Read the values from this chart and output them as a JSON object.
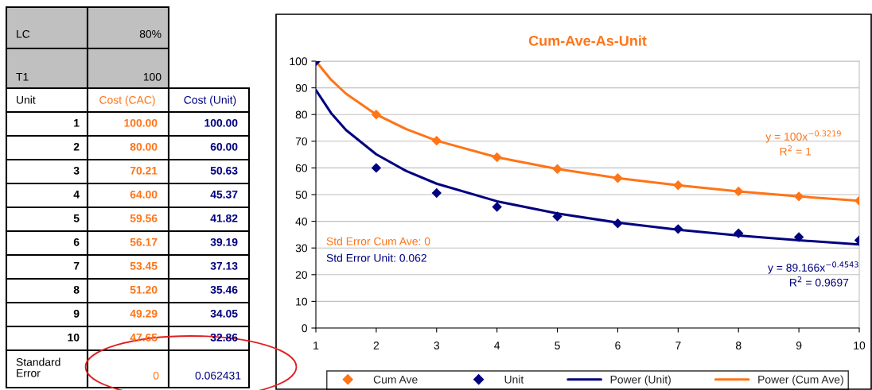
{
  "chart_data": {
    "type": "scatter",
    "title": "Cum-Ave-As-Unit",
    "x": [
      1,
      2,
      3,
      4,
      5,
      6,
      7,
      8,
      9,
      10
    ],
    "xlim": [
      1,
      10
    ],
    "xticks": [
      1,
      2,
      3,
      4,
      5,
      6,
      7,
      8,
      9,
      10
    ],
    "ylim": [
      0,
      100
    ],
    "yticks": [
      0,
      10,
      20,
      30,
      40,
      50,
      60,
      70,
      80,
      90,
      100
    ],
    "grid": "y",
    "legend": "bottom",
    "marker": "diamond",
    "series": [
      {
        "name": "Cum Ave",
        "color": "#ff7417",
        "values": [
          null,
          80,
          70.2,
          64,
          59.6,
          56.2,
          53.5,
          51.2,
          49.3,
          47.7
        ]
      },
      {
        "name": "Unit",
        "color": "#000080",
        "values": [
          100,
          60,
          50.6,
          45.4,
          41.8,
          39.2,
          37.1,
          35.5,
          34.1,
          32.9
        ]
      },
      {
        "name": "Power (Unit)",
        "type": "line",
        "marker": "none",
        "color": "#000080",
        "x": [
          1,
          1.25,
          1.5,
          2,
          2.5,
          3,
          4,
          5,
          6,
          7,
          8,
          9,
          10
        ],
        "values": [
          89.2,
          80.6,
          74.2,
          65.1,
          58.8,
          54.1,
          47.5,
          42.9,
          39.5,
          36.8,
          34.7,
          32.9,
          31.3
        ]
      },
      {
        "name": "Power (Cum Ave)",
        "type": "line",
        "marker": "none",
        "color": "#ff7417",
        "x": [
          1,
          1.25,
          1.5,
          2,
          2.5,
          3,
          4,
          5,
          6,
          7,
          8,
          9,
          10
        ],
        "values": [
          100,
          93.1,
          87.8,
          80,
          74.5,
          70.2,
          64,
          59.6,
          56.2,
          53.5,
          51.2,
          49.3,
          47.7
        ]
      }
    ],
    "annotations": [
      "y = 100x$^{−0.3219}$",
      "R$^{2}$ = 1",
      "y = 89.166x$^{−0.4543}$",
      "R$^{2}$ = 0.9697",
      "Std Error Cum Ave: 0",
      "Std Error Unit: 0.062",
      "LC",
      "80%",
      "T1",
      "100",
      "Unit",
      "Cost (CAC)",
      "Cost (Unit)",
      "1",
      "100.00",
      "100.00",
      "2",
      "80.00",
      "60.00",
      "3",
      "70.21",
      "50.63",
      "4",
      "64.00",
      "45.37",
      "5",
      "59.56",
      "41.82",
      "6",
      "56.17",
      "39.19",
      "7",
      "53.45",
      "37.13",
      "8",
      "51.20",
      "35.46",
      "9",
      "49.29",
      "34.05",
      "10",
      "47.65",
      "32.86",
      "Standard\nError",
      "0",
      "0.062431"
    ]
  }
}
